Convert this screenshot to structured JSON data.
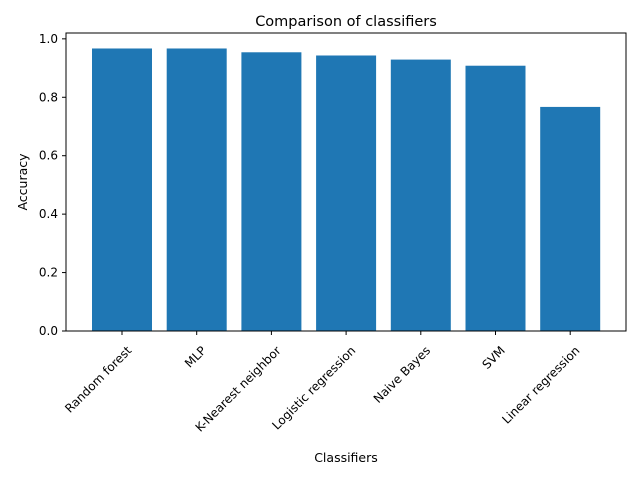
{
  "chart_data": {
    "type": "bar",
    "title": "Comparison of classifiers",
    "xlabel": "Classifiers",
    "ylabel": "Accuracy",
    "categories": [
      "Random forest",
      "MLP",
      "K-Nearest neighbor",
      "Logistic regression",
      "Naive Bayes",
      "SVM",
      "Linear regression"
    ],
    "values": [
      0.967,
      0.967,
      0.954,
      0.943,
      0.929,
      0.908,
      0.767
    ],
    "ylim": [
      0,
      1.0
    ],
    "yticks": [
      "0.0",
      "0.2",
      "0.4",
      "0.6",
      "0.8",
      "1.0"
    ],
    "bar_color": "#1f77b4",
    "grid": false
  }
}
